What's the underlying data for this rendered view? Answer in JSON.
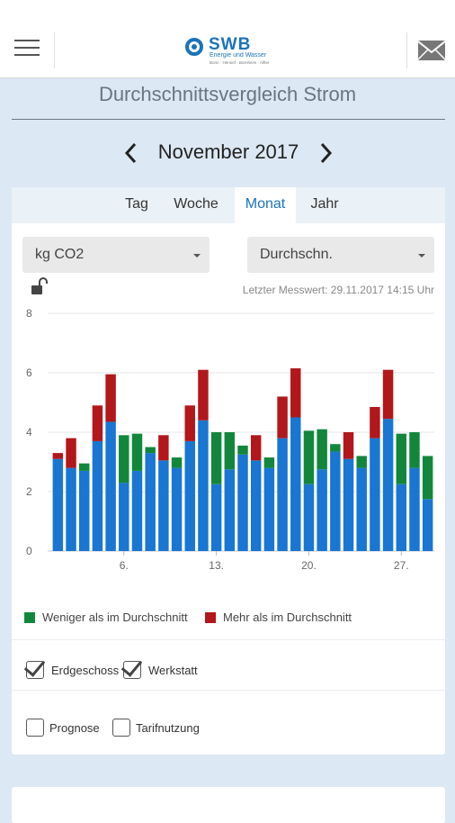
{
  "header": {
    "logo_text": "SWB",
    "logo_subtitle": "Energie und Wasser",
    "logo_small": "Bonn · Hennef · Bornheim · Alfter",
    "menu_icon": "hamburger-menu-icon",
    "mail_icon": "mail-icon"
  },
  "page": {
    "title": "Durchschnittsvergleich Strom",
    "month": "November 2017"
  },
  "tabs": [
    {
      "label": "Tag",
      "active": false
    },
    {
      "label": "Woche",
      "active": false
    },
    {
      "label": "Monat",
      "active": true
    },
    {
      "label": "Jahr",
      "active": false
    }
  ],
  "selects": {
    "unit": "kg CO2",
    "mode": "Durchschn."
  },
  "last_value": "Letzter Messwert: 29.11.2017 14:15 Uhr",
  "legend": {
    "less": "Weniger als im Durchschnitt",
    "more": "Mehr als im Durchschnitt",
    "less_color": "#12873c",
    "more_color": "#b2171b"
  },
  "checkboxes": [
    {
      "label": "Erdgeschoss",
      "checked": true
    },
    {
      "label": "Werkstatt",
      "checked": true
    },
    {
      "label": "Prognose",
      "checked": false
    },
    {
      "label": "Tarifnutzung",
      "checked": false
    }
  ],
  "chart_data": {
    "type": "bar",
    "stacked": true,
    "ylim": [
      0,
      8
    ],
    "yticks": [
      0,
      2,
      4,
      6,
      8
    ],
    "xtick_labels": [
      {
        "day": 6,
        "label": "6."
      },
      {
        "day": 13,
        "label": "13."
      },
      {
        "day": 20,
        "label": "20."
      },
      {
        "day": 27,
        "label": "27."
      }
    ],
    "days": [
      1,
      2,
      3,
      4,
      5,
      6,
      7,
      8,
      9,
      10,
      11,
      12,
      13,
      14,
      15,
      16,
      17,
      18,
      19,
      20,
      21,
      22,
      23,
      24,
      25,
      26,
      27,
      28,
      29
    ],
    "series": [
      {
        "name": "",
        "color": "#1976d2",
        "values": [
          3.1,
          2.8,
          2.7,
          3.7,
          4.35,
          2.3,
          2.7,
          3.3,
          3.05,
          2.8,
          3.7,
          4.4,
          2.25,
          2.75,
          3.25,
          3.05,
          2.8,
          3.8,
          4.5,
          2.25,
          2.75,
          3.35,
          3.1,
          2.8,
          3.8,
          4.45,
          2.25,
          2.8,
          1.75
        ]
      },
      {
        "name": "Weniger als im Durchschnitt",
        "color": "#12873c",
        "values": [
          0,
          0,
          0.25,
          0,
          0,
          1.6,
          1.25,
          0.2,
          0,
          0.35,
          0,
          0,
          1.75,
          1.25,
          0.3,
          0,
          0.35,
          0,
          0,
          1.8,
          1.35,
          0.25,
          0,
          0.4,
          0,
          0,
          1.7,
          1.2,
          1.45
        ]
      },
      {
        "name": "Mehr als im Durchschnitt",
        "color": "#b2171b",
        "values": [
          0.2,
          1.0,
          0,
          1.2,
          1.6,
          0,
          0,
          0,
          0.85,
          0,
          1.2,
          1.7,
          0,
          0,
          0,
          0.85,
          0,
          1.4,
          1.65,
          0,
          0,
          0,
          0.9,
          0,
          1.05,
          1.65,
          0,
          0,
          0
        ]
      }
    ]
  }
}
